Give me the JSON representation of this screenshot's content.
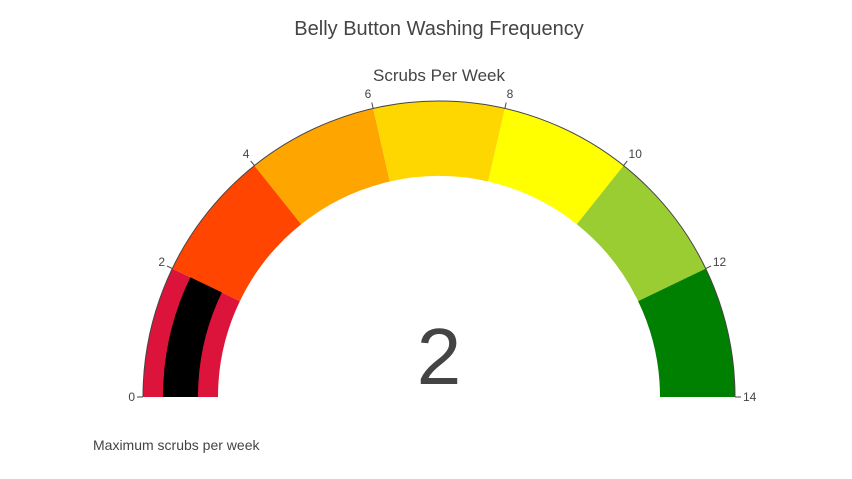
{
  "chart_data": {
    "type": "gauge",
    "title": "Belly Button Washing Frequency",
    "gauge_title": "Scrubs Per Week",
    "value": 2,
    "value_label": "2",
    "range": [
      0,
      14
    ],
    "tick_values": [
      0,
      2,
      4,
      6,
      8,
      10,
      12,
      14
    ],
    "tick_labels": [
      "0",
      "2",
      "4",
      "6",
      "8",
      "10",
      "12",
      "14"
    ],
    "steps": [
      {
        "range": [
          0,
          2
        ],
        "color": "#dc143c"
      },
      {
        "range": [
          2,
          4
        ],
        "color": "#ff4500"
      },
      {
        "range": [
          4,
          6
        ],
        "color": "#ffa500"
      },
      {
        "range": [
          6,
          8
        ],
        "color": "#ffd700"
      },
      {
        "range": [
          8,
          10
        ],
        "color": "#ffff00"
      },
      {
        "range": [
          10,
          12
        ],
        "color": "#9acd32"
      },
      {
        "range": [
          12,
          14
        ],
        "color": "#008000"
      }
    ],
    "bar_color": "#000000",
    "annotation": "Maximum scrubs per week"
  }
}
